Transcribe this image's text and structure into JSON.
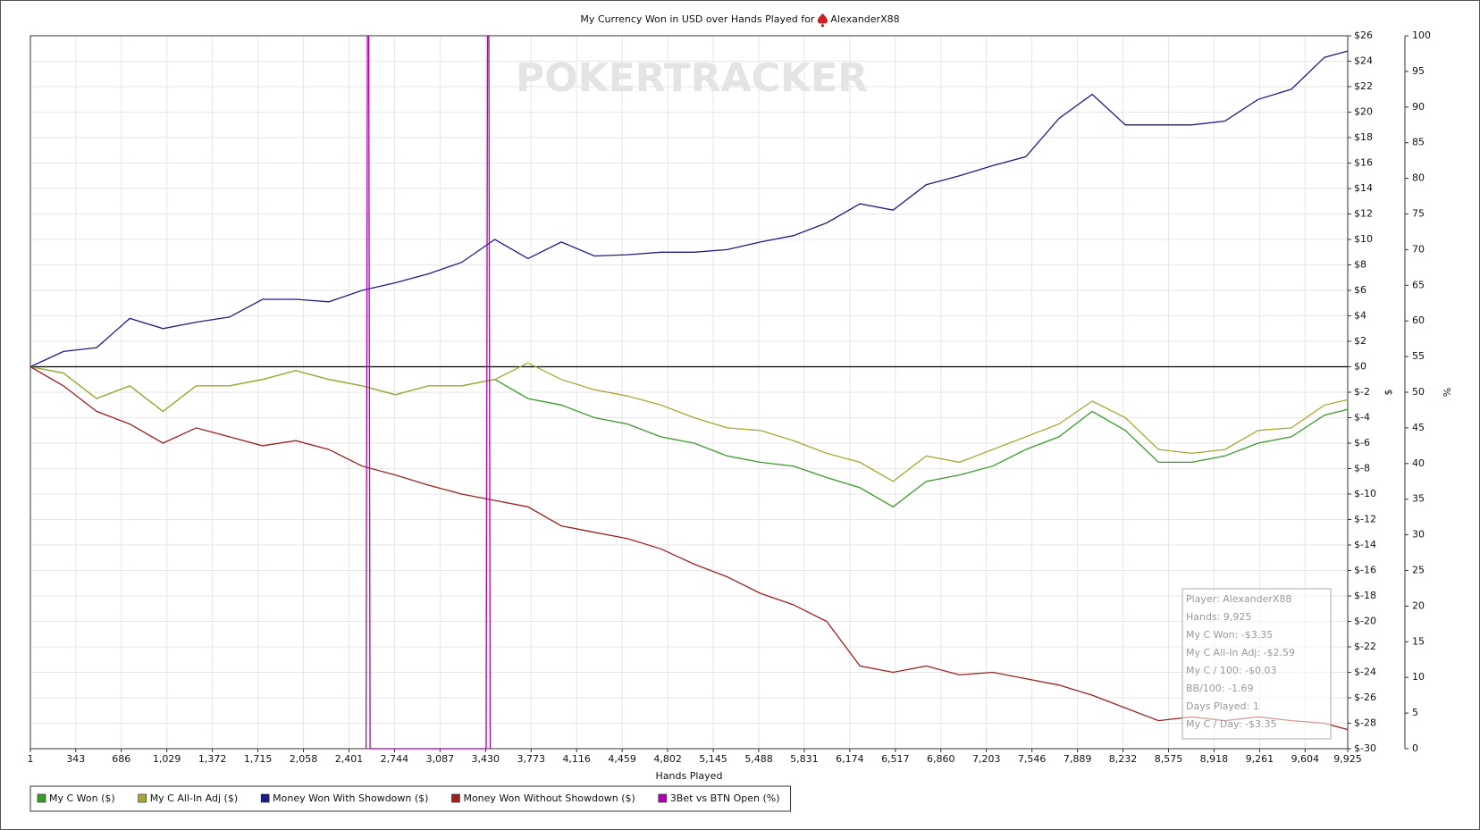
{
  "chart_data": {
    "type": "line",
    "title": "My Currency Won in USD over Hands Played for",
    "player": "AlexanderX88",
    "watermark": "POKERTRACKER",
    "x_label": "Hands Played",
    "y_label": "$",
    "y2_label": "%",
    "grid": true,
    "xlim": [
      1,
      9925
    ],
    "ylim": [
      -30,
      26
    ],
    "y2lim": [
      0,
      100
    ],
    "xticks": [
      1,
      343,
      686,
      {
        "value": 1029,
        "label": "1,029"
      },
      {
        "value": 1372,
        "label": "1,372"
      },
      {
        "value": 1715,
        "label": "1,715"
      },
      {
        "value": 2058,
        "label": "2,058"
      },
      {
        "value": 2401,
        "label": "2,401"
      },
      {
        "value": 2744,
        "label": "2,744"
      },
      {
        "value": 3087,
        "label": "3,087"
      },
      {
        "value": 3430,
        "label": "3,430"
      },
      {
        "value": 3773,
        "label": "3,773"
      },
      {
        "value": 4116,
        "label": "4,116"
      },
      {
        "value": 4459,
        "label": "4,459"
      },
      {
        "value": 4802,
        "label": "4,802"
      },
      {
        "value": 5145,
        "label": "5,145"
      },
      {
        "value": 5488,
        "label": "5,488"
      },
      {
        "value": 5831,
        "label": "5,831"
      },
      {
        "value": 6174,
        "label": "6,174"
      },
      {
        "value": 6517,
        "label": "6,517"
      },
      {
        "value": 6860,
        "label": "6,860"
      },
      {
        "value": 7203,
        "label": "7,203"
      },
      {
        "value": 7546,
        "label": "7,546"
      },
      {
        "value": 7889,
        "label": "7,889"
      },
      {
        "value": 8232,
        "label": "8,232"
      },
      {
        "value": 8575,
        "label": "8,575"
      },
      {
        "value": 8918,
        "label": "8,918"
      },
      {
        "value": 9261,
        "label": "9,261"
      },
      {
        "value": 9604,
        "label": "9,604"
      },
      {
        "value": 9925,
        "label": "9,925"
      }
    ],
    "yticks": [
      {
        "value": -30,
        "label": "$-30"
      },
      {
        "value": -28,
        "label": "$-28"
      },
      {
        "value": -26,
        "label": "$-26"
      },
      {
        "value": -24,
        "label": "$-24"
      },
      {
        "value": -22,
        "label": "$-22"
      },
      {
        "value": -20,
        "label": "$-20"
      },
      {
        "value": -18,
        "label": "$-18"
      },
      {
        "value": -16,
        "label": "$-16"
      },
      {
        "value": -14,
        "label": "$-14"
      },
      {
        "value": -12,
        "label": "$-12"
      },
      {
        "value": -10,
        "label": "$-10"
      },
      {
        "value": -8,
        "label": "$-8"
      },
      {
        "value": -6,
        "label": "$-6"
      },
      {
        "value": -4,
        "label": "$-4"
      },
      {
        "value": -2,
        "label": "$-2"
      },
      {
        "value": 0,
        "label": "$0"
      },
      {
        "value": 2,
        "label": "$2"
      },
      {
        "value": 4,
        "label": "$4"
      },
      {
        "value": 6,
        "label": "$6"
      },
      {
        "value": 8,
        "label": "$8"
      },
      {
        "value": 10,
        "label": "$10"
      },
      {
        "value": 12,
        "label": "$12"
      },
      {
        "value": 14,
        "label": "$14"
      },
      {
        "value": 16,
        "label": "$16"
      },
      {
        "value": 18,
        "label": "$18"
      },
      {
        "value": 20,
        "label": "$20"
      },
      {
        "value": 22,
        "label": "$22"
      },
      {
        "value": 24,
        "label": "$24"
      },
      {
        "value": 26,
        "label": "$26"
      }
    ],
    "y2ticks": [
      0,
      5,
      10,
      15,
      20,
      25,
      30,
      35,
      40,
      45,
      50,
      55,
      60,
      65,
      70,
      75,
      80,
      85,
      90,
      95,
      100
    ],
    "x": [
      1,
      250,
      500,
      750,
      1000,
      1250,
      1500,
      1750,
      2000,
      2250,
      2500,
      2750,
      3000,
      3250,
      3500,
      3750,
      4000,
      4250,
      4500,
      4750,
      5000,
      5250,
      5500,
      5750,
      6000,
      6250,
      6500,
      6750,
      7000,
      7250,
      7500,
      7750,
      8000,
      8250,
      8500,
      8750,
      9000,
      9250,
      9500,
      9750,
      9925
    ],
    "series": [
      {
        "name": "My C Won ($)",
        "color": "#3a9a2a",
        "values": [
          0,
          -0.5,
          -2.5,
          -1.5,
          -3.5,
          -1.5,
          -1.5,
          -1.0,
          -0.3,
          -1.0,
          -1.5,
          -2.2,
          -1.5,
          -1.5,
          -1.0,
          -2.5,
          -3.0,
          -4.0,
          -4.5,
          -5.5,
          -6.0,
          -7.0,
          -7.5,
          -7.8,
          -8.7,
          -9.5,
          -11.0,
          -9.0,
          -8.5,
          -7.8,
          -6.5,
          -5.5,
          -3.5,
          -5.0,
          -7.5,
          -7.5,
          -7.0,
          -6.0,
          -5.5,
          -3.8,
          -3.35
        ]
      },
      {
        "name": "My C All-In Adj ($)",
        "color": "#a8a832",
        "values": [
          0,
          -0.5,
          -2.5,
          -1.5,
          -3.5,
          -1.5,
          -1.5,
          -1.0,
          -0.3,
          -1.0,
          -1.5,
          -2.2,
          -1.5,
          -1.5,
          -1.0,
          0.3,
          -1.0,
          -1.8,
          -2.3,
          -3.0,
          -4.0,
          -4.8,
          -5.0,
          -5.8,
          -6.8,
          -7.5,
          -9.0,
          -7.0,
          -7.5,
          -6.5,
          -5.5,
          -4.5,
          -2.7,
          -4.0,
          -6.5,
          -6.8,
          -6.5,
          -5.0,
          -4.8,
          -3.0,
          -2.59
        ]
      },
      {
        "name": "Money Won With Showdown ($)",
        "color": "#1c1c8c",
        "values": [
          0,
          1.2,
          1.5,
          3.8,
          3.0,
          3.5,
          3.9,
          5.3,
          5.3,
          5.1,
          6.0,
          6.6,
          7.3,
          8.2,
          10.0,
          8.5,
          9.8,
          8.7,
          8.8,
          9.0,
          9.0,
          9.2,
          9.8,
          10.3,
          11.3,
          12.8,
          12.3,
          14.3,
          15.0,
          15.8,
          16.5,
          19.5,
          21.4,
          19.0,
          19.0,
          19.0,
          19.3,
          21.0,
          21.8,
          24.3,
          24.8
        ]
      },
      {
        "name": "Money Won Without Showdown ($)",
        "color": "#a02020",
        "values": [
          0,
          -1.5,
          -3.5,
          -4.5,
          -6.0,
          -4.8,
          -5.5,
          -6.2,
          -5.8,
          -6.5,
          -7.8,
          -8.5,
          -9.3,
          -10.0,
          -10.5,
          -11.0,
          -12.5,
          -13.0,
          -13.5,
          -14.3,
          -15.5,
          -16.5,
          -17.8,
          -18.7,
          -20.0,
          -23.5,
          -24.0,
          -23.5,
          -24.2,
          -24.0,
          -24.5,
          -25.0,
          -25.8,
          -26.8,
          -27.8,
          -27.5,
          -27.8,
          -27.5,
          -27.8,
          -28.0,
          -28.5
        ]
      },
      {
        "name": "3Bet vs BTN Open (%)",
        "color": "#b000b0",
        "axis": "y2",
        "x": [
          2530,
          2540,
          2550,
          2560,
          3435,
          3445,
          3455,
          3465
        ],
        "values": [
          0,
          100,
          100,
          0,
          0,
          100,
          100,
          0
        ]
      }
    ],
    "stats": [
      "Player: AlexanderX88",
      "Hands: 9,925",
      "My C Won: -$3.35",
      "My C All-In Adj: -$2.59",
      "My C / 100: -$0.03",
      "BB/100: -1.69",
      "Days Played: 1",
      "My C / Day: -$3.35"
    ]
  }
}
